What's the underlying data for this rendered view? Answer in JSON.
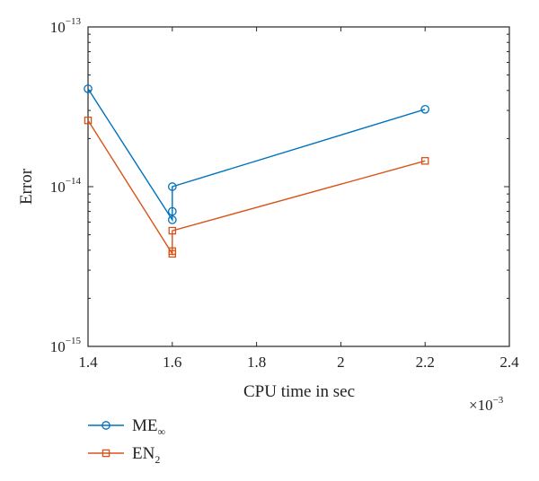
{
  "chart_data": {
    "type": "line",
    "xlabel": "CPU time in sec",
    "ylabel": "Error",
    "x_multiplier": "×10",
    "x_multiplier_exp": "−3",
    "xlim": [
      1.4,
      2.4
    ],
    "ylim": [
      1e-15,
      1e-13
    ],
    "yscale": "log",
    "xticks": [
      1.4,
      1.6,
      1.8,
      2.0,
      2.2,
      2.4
    ],
    "xtick_labels": [
      "1.4",
      "1.6",
      "1.8",
      "2",
      "2.2",
      "2.4"
    ],
    "yticks": [
      {
        "value": 1e-15,
        "base": "10",
        "exp": "−15"
      },
      {
        "value": 1e-14,
        "base": "10",
        "exp": "−14"
      },
      {
        "value": 1e-13,
        "base": "10",
        "exp": "−13"
      }
    ],
    "legend_position": "bottom-left",
    "series": [
      {
        "name": "ME",
        "name_sub": "∞",
        "color": "#0072BD",
        "marker": "circle",
        "points": [
          [
            1.4,
            4.1e-14
          ],
          [
            1.6,
            6.2e-15
          ],
          [
            1.6,
            7e-15
          ],
          [
            1.6,
            1e-14
          ],
          [
            2.2,
            3.05e-14
          ]
        ]
      },
      {
        "name": "EN",
        "name_sub": "2",
        "color": "#D95319",
        "marker": "square",
        "points": [
          [
            1.4,
            2.6e-14
          ],
          [
            1.6,
            3.8e-15
          ],
          [
            1.6,
            3.95e-15
          ],
          [
            1.6,
            5.3e-15
          ],
          [
            2.2,
            1.45e-14
          ]
        ]
      }
    ]
  }
}
